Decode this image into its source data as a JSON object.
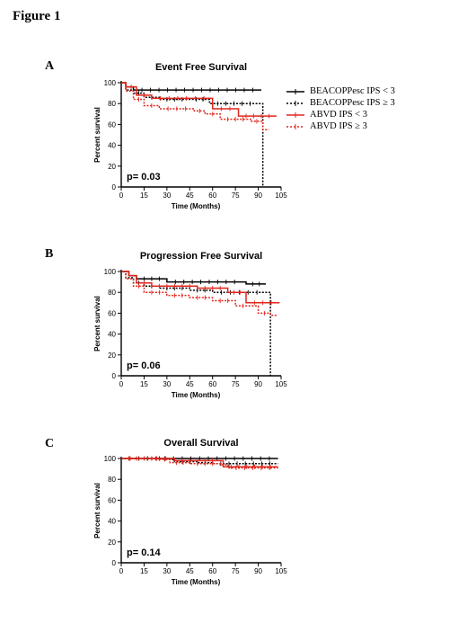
{
  "figure_title": "Figure 1",
  "legend": {
    "items": [
      {
        "label": "BEACOPPesc IPS < 3",
        "color": "#000000",
        "dash": "solid"
      },
      {
        "label": "BEACOPPesc IPS ≥ 3",
        "color": "#000000",
        "dash": "dotted"
      },
      {
        "label": "ABVD IPS < 3",
        "color": "#e0261d",
        "dash": "solid"
      },
      {
        "label": "ABVD IPS ≥ 3",
        "color": "#e0261d",
        "dash": "dotted"
      }
    ]
  },
  "chart_data": [
    {
      "panel": "A",
      "type": "line",
      "title": "Event Free Survival",
      "xlabel": "Time (Months)",
      "ylabel": "Percent survival",
      "xlim": [
        0,
        105
      ],
      "ylim": [
        0,
        100
      ],
      "x_ticks": [
        0,
        15,
        30,
        45,
        60,
        75,
        90,
        105
      ],
      "y_ticks": [
        0,
        20,
        40,
        60,
        80,
        100
      ],
      "annotation": "p= 0.03",
      "series": [
        {
          "name": "BEACOPPesc IPS < 3",
          "steps": [
            [
              0,
              100
            ],
            [
              3,
              96
            ],
            [
              8,
              93
            ],
            [
              92,
              93
            ]
          ]
        },
        {
          "name": "BEACOPPesc IPS ≥ 3",
          "steps": [
            [
              0,
              100
            ],
            [
              3,
              93
            ],
            [
              8,
              90
            ],
            [
              15,
              86
            ],
            [
              25,
              84
            ],
            [
              45,
              84
            ],
            [
              58,
              80
            ],
            [
              90,
              80
            ],
            [
              93,
              0
            ]
          ]
        },
        {
          "name": "ABVD IPS < 3",
          "steps": [
            [
              0,
              100
            ],
            [
              3,
              96
            ],
            [
              10,
              88
            ],
            [
              20,
              85
            ],
            [
              60,
              85
            ],
            [
              60,
              75
            ],
            [
              77,
              75
            ],
            [
              77,
              68
            ],
            [
              102,
              68
            ]
          ]
        },
        {
          "name": "ABVD IPS ≥ 3",
          "steps": [
            [
              0,
              100
            ],
            [
              3,
              92
            ],
            [
              8,
              84
            ],
            [
              15,
              78
            ],
            [
              25,
              75
            ],
            [
              48,
              73
            ],
            [
              55,
              70
            ],
            [
              65,
              65
            ],
            [
              85,
              63
            ],
            [
              93,
              55
            ],
            [
              97,
              55
            ]
          ]
        }
      ]
    },
    {
      "panel": "B",
      "type": "line",
      "title": "Progression Free Survival",
      "xlabel": "Time (Months)",
      "ylabel": "Percent survival",
      "xlim": [
        0,
        105
      ],
      "ylim": [
        0,
        100
      ],
      "x_ticks": [
        0,
        15,
        30,
        45,
        60,
        75,
        90,
        105
      ],
      "y_ticks": [
        0,
        20,
        40,
        60,
        80,
        100
      ],
      "annotation": "p= 0.06",
      "series": [
        {
          "name": "BEACOPPesc IPS < 3",
          "steps": [
            [
              0,
              100
            ],
            [
              5,
              96
            ],
            [
              10,
              93
            ],
            [
              30,
              90
            ],
            [
              80,
              90
            ],
            [
              82,
              88
            ],
            [
              95,
              88
            ]
          ]
        },
        {
          "name": "BEACOPPesc IPS ≥ 3",
          "steps": [
            [
              0,
              100
            ],
            [
              3,
              94
            ],
            [
              8,
              89
            ],
            [
              15,
              86
            ],
            [
              25,
              84
            ],
            [
              45,
              82
            ],
            [
              60,
              80
            ],
            [
              95,
              80
            ],
            [
              98,
              0
            ]
          ]
        },
        {
          "name": "ABVD IPS < 3",
          "steps": [
            [
              0,
              100
            ],
            [
              5,
              96
            ],
            [
              10,
              89
            ],
            [
              20,
              86
            ],
            [
              50,
              84
            ],
            [
              70,
              80
            ],
            [
              82,
              80
            ],
            [
              82,
              70
            ],
            [
              104,
              70
            ]
          ]
        },
        {
          "name": "ABVD IPS ≥ 3",
          "steps": [
            [
              0,
              100
            ],
            [
              3,
              93
            ],
            [
              8,
              86
            ],
            [
              15,
              80
            ],
            [
              30,
              77
            ],
            [
              45,
              75
            ],
            [
              60,
              72
            ],
            [
              75,
              67
            ],
            [
              85,
              67
            ],
            [
              90,
              60
            ],
            [
              98,
              58
            ],
            [
              103,
              58
            ]
          ]
        }
      ]
    },
    {
      "panel": "C",
      "type": "line",
      "title": "Overall Survival",
      "xlabel": "Time (Months)",
      "ylabel": "Percent survival",
      "xlim": [
        0,
        105
      ],
      "ylim": [
        0,
        100
      ],
      "x_ticks": [
        0,
        15,
        30,
        45,
        60,
        75,
        90,
        105
      ],
      "y_ticks": [
        0,
        20,
        40,
        60,
        80,
        100
      ],
      "annotation": "p= 0.14",
      "series": [
        {
          "name": "BEACOPPesc IPS < 3",
          "steps": [
            [
              0,
              100
            ],
            [
              103,
              100
            ]
          ]
        },
        {
          "name": "BEACOPPesc IPS ≥ 3",
          "steps": [
            [
              0,
              100
            ],
            [
              30,
              99
            ],
            [
              35,
              97
            ],
            [
              50,
              96
            ],
            [
              60,
              95
            ],
            [
              103,
              95
            ]
          ]
        },
        {
          "name": "ABVD IPS < 3",
          "steps": [
            [
              0,
              100
            ],
            [
              35,
              98
            ],
            [
              65,
              98
            ],
            [
              67,
              92
            ],
            [
              103,
              92
            ]
          ]
        },
        {
          "name": "ABVD IPS ≥ 3",
          "steps": [
            [
              0,
              100
            ],
            [
              25,
              99
            ],
            [
              32,
              96
            ],
            [
              45,
              95
            ],
            [
              65,
              94
            ],
            [
              70,
              91
            ],
            [
              103,
              91
            ]
          ]
        }
      ]
    }
  ]
}
